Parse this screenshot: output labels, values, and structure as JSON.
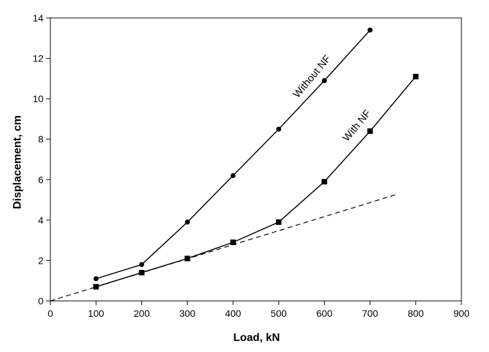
{
  "chart_data": {
    "type": "line",
    "xlabel": "Load, kN",
    "ylabel": "Displacement, cm",
    "xlim": [
      0,
      900
    ],
    "ylim": [
      0,
      14
    ],
    "xticks": [
      0,
      100,
      200,
      300,
      400,
      500,
      600,
      700,
      800,
      900
    ],
    "yticks": [
      0,
      2,
      4,
      6,
      8,
      10,
      12,
      14
    ],
    "grid": false,
    "legend": "none",
    "series": [
      {
        "name": "Without NF",
        "marker": "circle",
        "line": "solid",
        "x": [
          100,
          200,
          300,
          400,
          500,
          600,
          700
        ],
        "y": [
          1.1,
          1.8,
          3.9,
          6.2,
          8.5,
          10.9,
          13.4
        ]
      },
      {
        "name": "With NF",
        "marker": "square",
        "line": "solid",
        "x": [
          100,
          200,
          300,
          400,
          500,
          600,
          700,
          800
        ],
        "y": [
          0.7,
          1.4,
          2.1,
          2.9,
          3.9,
          5.9,
          8.4,
          11.1
        ]
      },
      {
        "name": "linear-trend",
        "marker": "none",
        "line": "dashed",
        "x": [
          0,
          755
        ],
        "y": [
          0,
          5.25
        ]
      }
    ],
    "annotations": [
      {
        "text": "Without NF",
        "series": "Without NF"
      },
      {
        "text": "With NF",
        "series": "With NF"
      }
    ]
  }
}
